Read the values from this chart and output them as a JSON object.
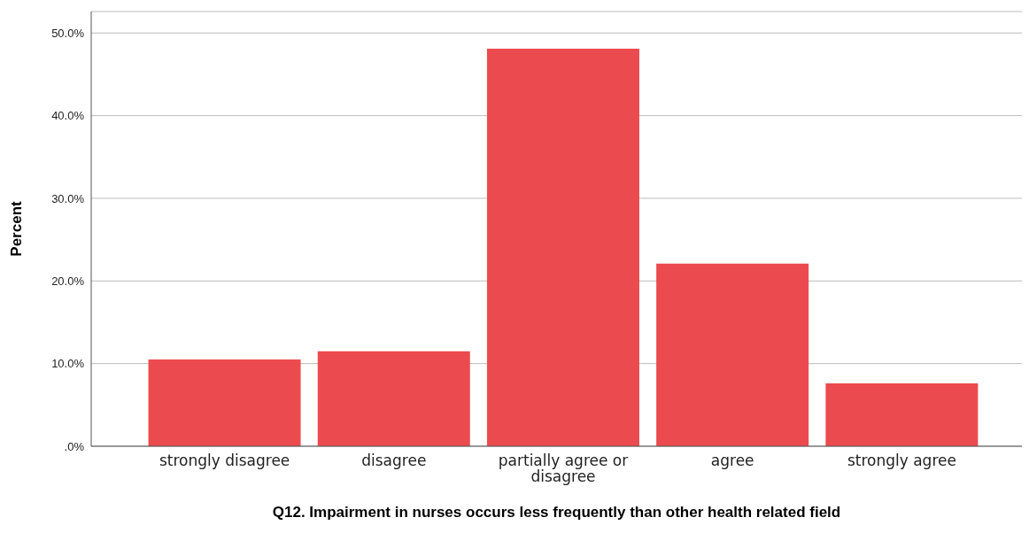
{
  "chart_data": {
    "type": "bar",
    "xlabel": "Q12. Impairment in nurses occurs less frequently than other health related field",
    "ylabel": "Percent",
    "categories": [
      "strongly disagree",
      "disagree",
      "partially agree or disagree",
      "agree",
      "strongly agree"
    ],
    "values": [
      10.5,
      11.5,
      48.1,
      22.1,
      7.6
    ],
    "color": "#eb4b4e",
    "ylim": [
      0,
      52.6
    ],
    "yticks": [
      {
        "value": 0,
        "label": ".0%"
      },
      {
        "value": 10,
        "label": "10.0%"
      },
      {
        "value": 20,
        "label": "20.0%"
      },
      {
        "value": 30,
        "label": "30.0%"
      },
      {
        "value": 40,
        "label": "40.0%"
      },
      {
        "value": 50,
        "label": "50.0%"
      }
    ],
    "grid": "y"
  }
}
